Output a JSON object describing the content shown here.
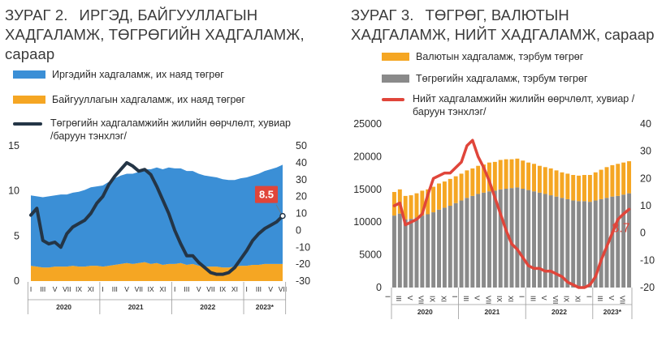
{
  "colors": {
    "blue": "#3b8fd6",
    "orange": "#f5a623",
    "navy": "#243546",
    "gray": "#8a8a8a",
    "red": "#e0453a",
    "axis_text": "#2b2b2b"
  },
  "chart1": {
    "title_num": "ЗУРАГ 2.",
    "title_text": "ИРГЭД, БАЙГУУЛЛАГЫН ХАДГАЛАМЖ, ТӨГРӨГИЙН ХАДГАЛАМЖ, сараар",
    "legend": [
      "Иргэдийн хадгаламж, их наяд төгрөг",
      "Байгууллагын хадгаламж, их наяд төгрөг",
      "Төгрөгийн хадгаламжийн жилийн өөрчлөлт, хувиар /баруун тэнхлэг/"
    ],
    "annotation": "8.5"
  },
  "chart2": {
    "title_num": "ЗУРАГ 3.",
    "title_text": "ТӨГРӨГ, ВАЛЮТЫН ХАДГАЛАМЖ, НИЙТ ХАДГАЛАМЖ, сараар",
    "legend": [
      "Валютын хадгаламж, тэрбум төгрөг",
      "Төгрөгийн хадгаламж, тэрбум төгрөг",
      "Нийт хадгаламжийн жилийн өөрчлөлт, хувиар /баруун тэнхлэг/"
    ],
    "annotation": "8.7"
  },
  "chart_data": [
    {
      "type": "area",
      "title": "ЗУРАГ 2. ИРГЭД, БАЙГУУЛЛАГЫН ХАДГАЛАМЖ, ТӨГРӨГИЙН ХАДГАЛАМЖ, сараар",
      "x_ticks": [
        "I",
        "III",
        "V",
        "VII",
        "IX",
        "XI",
        "I",
        "III",
        "V",
        "VII",
        "IX",
        "XI",
        "I",
        "III",
        "V",
        "VII",
        "IX",
        "XI",
        "I",
        "III",
        "V",
        "VII"
      ],
      "year_labels": [
        "2020",
        "2021",
        "2022",
        "2023*"
      ],
      "ylim_left": [
        0,
        15
      ],
      "yticks_left": [
        0,
        5,
        10,
        15
      ],
      "ylim_right": [
        -30,
        50
      ],
      "yticks_right": [
        -30,
        -20,
        -10,
        0,
        10,
        20,
        30,
        40,
        50
      ],
      "series": [
        {
          "name": "Иргэдийн хадгаламж, их наяд төгрөг",
          "axis": "left",
          "stack": true,
          "values": [
            7.8,
            7.8,
            7.8,
            7.9,
            7.9,
            8.0,
            8.0,
            8.1,
            8.3,
            8.5,
            8.7,
            8.8,
            9.0,
            9.3,
            9.6,
            9.8,
            9.9,
            10.0,
            10.1,
            10.3,
            10.5,
            10.6,
            10.6,
            10.7,
            10.6,
            10.5,
            10.4,
            10.3,
            10.2,
            10.1,
            10.0,
            9.9,
            9.8,
            9.7,
            9.6,
            9.7,
            9.8,
            9.9,
            10.1,
            10.3,
            10.5,
            10.7,
            11.0
          ]
        },
        {
          "name": "Байгууллагын хадгаламж, их наяд төгрөг",
          "axis": "left",
          "stack": true,
          "values": [
            1.7,
            1.6,
            1.5,
            1.5,
            1.6,
            1.6,
            1.6,
            1.7,
            1.6,
            1.6,
            1.7,
            1.7,
            1.6,
            1.7,
            1.8,
            1.9,
            2.0,
            1.9,
            2.0,
            2.1,
            1.9,
            2.0,
            1.8,
            1.9,
            1.9,
            2.0,
            1.8,
            1.9,
            1.7,
            1.6,
            1.6,
            1.6,
            1.5,
            1.5,
            1.6,
            1.7,
            1.7,
            1.8,
            1.8,
            1.9,
            1.9,
            1.9,
            1.9
          ]
        },
        {
          "name": "Төгрөгийн хадгаламжийн жилийн өөрчлөлт, хувиар /баруун тэнхлэг/",
          "axis": "right",
          "values": [
            9,
            13,
            -6,
            -8,
            -7,
            -10,
            -2,
            2,
            4,
            6,
            10,
            16,
            20,
            27,
            32,
            36,
            40,
            38,
            35,
            36,
            33,
            26,
            18,
            10,
            0,
            -8,
            -15,
            -15,
            -19,
            -22,
            -25,
            -26,
            -26,
            -25,
            -22,
            -17,
            -12,
            -6,
            -2,
            1,
            3,
            5,
            8.5
          ]
        }
      ]
    },
    {
      "type": "bar",
      "title": "ЗУРАГ 3. ТӨГРӨГ, ВАЛЮТЫН ХАДГАЛАМЖ, НИЙТ ХАДГАЛАМЖ, сараар",
      "x_ticks": [
        "I",
        "III",
        "V",
        "VII",
        "IX",
        "XI",
        "I",
        "III",
        "V",
        "VII",
        "IX",
        "XI",
        "I",
        "III",
        "V",
        "VII",
        "IX",
        "XI",
        "I",
        "III",
        "V",
        "VII"
      ],
      "year_labels": [
        "2020",
        "2021",
        "2022",
        "2023*"
      ],
      "ylim_left": [
        0,
        25000
      ],
      "yticks_left": [
        0,
        5000,
        10000,
        15000,
        20000,
        25000
      ],
      "ylim_right": [
        -20,
        40
      ],
      "yticks_right": [
        -20,
        -10,
        0,
        10,
        20,
        30,
        40
      ],
      "series": [
        {
          "name": "Төгрөгийн хадгаламж, тэрбум төгрөг",
          "axis": "left",
          "stack": true,
          "values": [
            11000,
            11300,
            10400,
            10500,
            10700,
            11000,
            11200,
            11500,
            11900,
            12200,
            12500,
            12900,
            13300,
            13700,
            14000,
            14300,
            14500,
            14700,
            14800,
            15000,
            15100,
            15200,
            15300,
            15100,
            14900,
            14700,
            14500,
            14300,
            14100,
            13900,
            13700,
            13500,
            13300,
            13200,
            13200,
            13100,
            13300,
            13500,
            13700,
            13900,
            14000,
            14200,
            14400
          ]
        },
        {
          "name": "Валютын хадгаламж, тэрбум төгрөг",
          "axis": "left",
          "stack": true,
          "values": [
            3600,
            3700,
            3600,
            3600,
            3700,
            3800,
            3800,
            3900,
            4000,
            4000,
            4100,
            4100,
            4100,
            4200,
            4200,
            4300,
            4300,
            4400,
            4400,
            4500,
            4500,
            4400,
            4400,
            4300,
            4200,
            4200,
            4100,
            4100,
            4100,
            4000,
            3900,
            3900,
            3900,
            3900,
            4000,
            4100,
            4300,
            4500,
            4700,
            4800,
            4900,
            4900,
            4900
          ]
        },
        {
          "name": "Нийт хадгаламжийн жилийн өөрчлөлт, хувиар /баруун тэнхлэг/",
          "axis": "right",
          "values": [
            10,
            11,
            3,
            4,
            5,
            7,
            14,
            20,
            21,
            22,
            22,
            24,
            26,
            32,
            34,
            28,
            24,
            19,
            13,
            7,
            1,
            -4,
            -6,
            -9,
            -12,
            -13,
            -13,
            -14,
            -14,
            -15,
            -16,
            -18,
            -19,
            -20,
            -20,
            -19,
            -16,
            -10,
            -5,
            0,
            5,
            7,
            8.7
          ]
        }
      ]
    }
  ]
}
